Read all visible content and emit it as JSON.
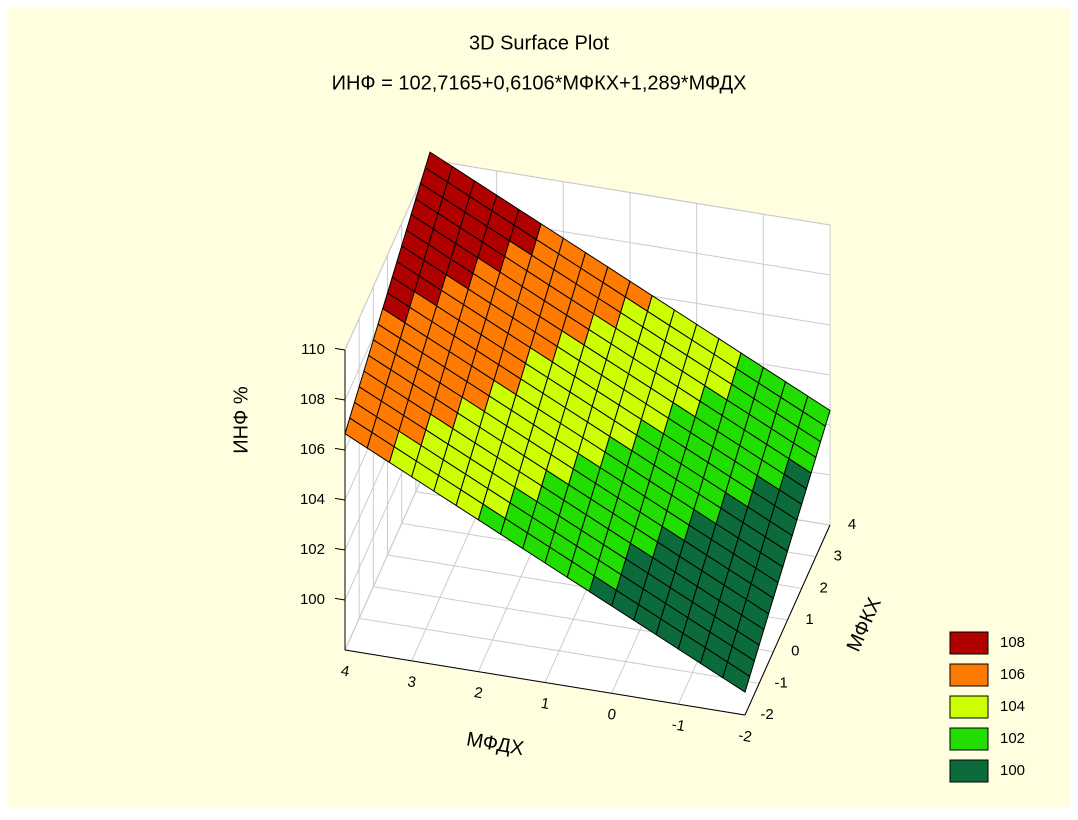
{
  "chart_data": {
    "type": "surface3d",
    "title": "3D Surface Plot",
    "subtitle": "ИНФ = 102,7165+0,6106*МФКХ+1,289*МФДХ",
    "x_label": "МФДХ",
    "y_label": "МФКХ",
    "z_label": "ИНФ %",
    "surface": {
      "intercept": 102.7165,
      "y_coef": 0.6106,
      "x_coef": 1.289
    },
    "xlim": [
      -2,
      4
    ],
    "xticks": [
      -2,
      -1,
      0,
      1,
      2,
      3,
      4
    ],
    "ylim": [
      -2,
      4
    ],
    "yticks": [
      -2,
      -1,
      0,
      1,
      2,
      3,
      4
    ],
    "zlim": [
      98,
      110
    ],
    "zticks": [
      100,
      102,
      104,
      106,
      108,
      110
    ],
    "grid": true,
    "contour_levels": [
      108,
      106,
      104,
      102,
      100
    ],
    "contour_colors": [
      "#b00000",
      "#ff7a00",
      "#ccff00",
      "#22dd00",
      "#0b6b3a"
    ]
  }
}
